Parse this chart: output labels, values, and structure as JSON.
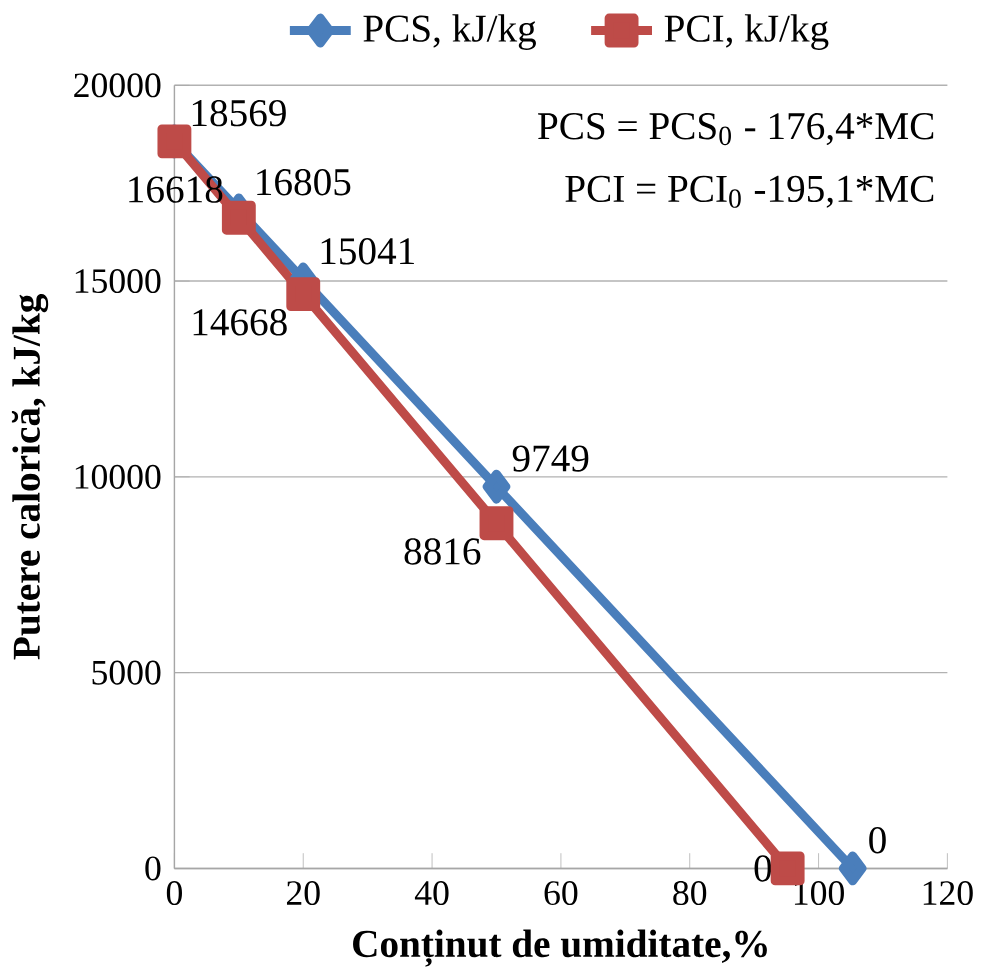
{
  "chart_data": {
    "type": "line",
    "xlabel": "Conținut de umiditate,%",
    "ylabel": "Putere calorică, kJ/kg",
    "xlim": [
      0,
      120
    ],
    "xticks": [
      0,
      20,
      40,
      60,
      80,
      100,
      120
    ],
    "ylim": [
      0,
      20000
    ],
    "yticks": [
      0,
      5000,
      10000,
      15000,
      20000
    ],
    "grid": "y",
    "legend": "top",
    "series": [
      {
        "name": "PCS, kJ/kg",
        "color": "#4a7ebb",
        "marker": "diamond",
        "x": [
          0,
          10,
          20,
          50,
          105.3
        ],
        "values": [
          18569,
          16805,
          15041,
          9749,
          0
        ],
        "value_labels": [
          "18569",
          "16805",
          "15041",
          "9749",
          "0"
        ]
      },
      {
        "name": "PCI, kJ/kg",
        "color": "#be4b48",
        "marker": "square",
        "x": [
          0,
          10,
          20,
          50,
          95.2
        ],
        "values": [
          18569,
          16618,
          14668,
          8816,
          0
        ],
        "value_labels": [
          null,
          "16618",
          "14668",
          "8816",
          "0"
        ]
      }
    ],
    "annotations": [
      "PCS = PCS$_{0}$ - 176,4*MC",
      "PCI  = PCI$_{0}$ -195,1*MC"
    ]
  }
}
